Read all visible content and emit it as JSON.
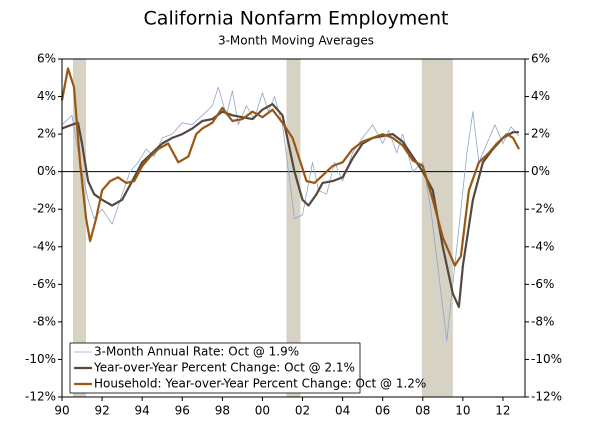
{
  "chart_data": {
    "type": "line",
    "title": "California Nonfarm Employment",
    "subtitle": "3-Month Moving Averages",
    "xlim": [
      1990,
      2013.1
    ],
    "xticks": [
      {
        "value": 1990,
        "label": "90"
      },
      {
        "value": 1992,
        "label": "92"
      },
      {
        "value": 1994,
        "label": "94"
      },
      {
        "value": 1996,
        "label": "96"
      },
      {
        "value": 1998,
        "label": "98"
      },
      {
        "value": 2000,
        "label": "00"
      },
      {
        "value": 2002,
        "label": "02"
      },
      {
        "value": 2004,
        "label": "04"
      },
      {
        "value": 2006,
        "label": "06"
      },
      {
        "value": 2008,
        "label": "08"
      },
      {
        "value": 2010,
        "label": "10"
      },
      {
        "value": 2012,
        "label": "12"
      }
    ],
    "ylim": [
      -12,
      6
    ],
    "yticks": [
      {
        "value": -12,
        "label": "-12%"
      },
      {
        "value": -10,
        "label": "-10%"
      },
      {
        "value": -8,
        "label": "-8%"
      },
      {
        "value": -6,
        "label": "-6%"
      },
      {
        "value": -4,
        "label": "-4%"
      },
      {
        "value": -2,
        "label": "-2%"
      },
      {
        "value": 0,
        "label": "0%"
      },
      {
        "value": 2,
        "label": "2%"
      },
      {
        "value": 4,
        "label": "4%"
      },
      {
        "value": 6,
        "label": "6%"
      }
    ],
    "y2lim": [
      -12,
      6
    ],
    "y2ticks": [
      {
        "value": -12,
        "label": "-12%"
      },
      {
        "value": -10,
        "label": "-10%"
      },
      {
        "value": -8,
        "label": "-8%"
      },
      {
        "value": -6,
        "label": "-6%"
      },
      {
        "value": -4,
        "label": "-4%"
      },
      {
        "value": -2,
        "label": "-2%"
      },
      {
        "value": 0,
        "label": "0%"
      },
      {
        "value": 2,
        "label": "2%"
      },
      {
        "value": 4,
        "label": "4%"
      },
      {
        "value": 6,
        "label": "6%"
      }
    ],
    "recessions": [
      [
        1990.55,
        1991.2
      ],
      [
        2001.2,
        2001.9
      ],
      [
        2007.95,
        2009.5
      ]
    ],
    "recession_color": "#d6d2c4",
    "legend": "lower left",
    "series": [
      {
        "name": "3-Month Annual Rate: Oct @ 1.9%",
        "color": "#8fa6c9",
        "width": 0.8,
        "x": [
          1990,
          1990.5,
          1990.9,
          1991.3,
          1991.6,
          1992,
          1992.5,
          1993,
          1993.4,
          1993.8,
          1994.2,
          1994.6,
          1995,
          1995.5,
          1996,
          1996.5,
          1997,
          1997.5,
          1997.8,
          1998.2,
          1998.5,
          1998.8,
          1999.2,
          1999.6,
          2000,
          2000.3,
          2000.6,
          2001,
          2001.3,
          2001.6,
          2002,
          2002.5,
          2002.8,
          2003.2,
          2003.6,
          2004,
          2004.5,
          2005,
          2005.5,
          2006,
          2006.3,
          2006.7,
          2007,
          2007.5,
          2008,
          2008.4,
          2008.8,
          2009.2,
          2009.5,
          2009.9,
          2010.2,
          2010.5,
          2010.8,
          2011.2,
          2011.6,
          2012,
          2012.4,
          2012.8
        ],
        "values": [
          2.5,
          3.0,
          0.5,
          -1.5,
          -2.5,
          -2.0,
          -2.8,
          -1.2,
          0,
          0.5,
          1.2,
          0.8,
          1.8,
          2.0,
          2.6,
          2.5,
          3.0,
          3.5,
          4.5,
          3.0,
          4.3,
          2.5,
          3.5,
          2.8,
          4.2,
          3.2,
          4.0,
          2.5,
          0,
          -2.5,
          -2.3,
          0.5,
          -1.0,
          -1.2,
          0.5,
          -0.5,
          1.0,
          1.8,
          2.5,
          1.5,
          2.2,
          1.0,
          2.0,
          0,
          0.5,
          -2.0,
          -5.5,
          -9.0,
          -6.0,
          -2.0,
          1.0,
          3.2,
          0.5,
          1.5,
          2.5,
          1.5,
          2.4,
          1.9
        ]
      },
      {
        "name": "Year-over-Year Percent Change: Oct @ 2.1%",
        "color": "#55483e",
        "width": 2.2,
        "x": [
          1990,
          1990.5,
          1990.8,
          1991,
          1991.3,
          1991.6,
          1992,
          1992.5,
          1993,
          1993.5,
          1994,
          1994.5,
          1995,
          1995.5,
          1996,
          1996.5,
          1997,
          1997.5,
          1998,
          1998.5,
          1999,
          1999.5,
          2000,
          2000.5,
          2001,
          2001.3,
          2001.6,
          2002,
          2002.3,
          2002.7,
          2003,
          2003.5,
          2004,
          2004.5,
          2005,
          2005.5,
          2006,
          2006.5,
          2007,
          2007.5,
          2008,
          2008.5,
          2009,
          2009.5,
          2009.8,
          2010,
          2010.5,
          2011,
          2011.5,
          2012,
          2012.5,
          2012.8
        ],
        "values": [
          2.3,
          2.5,
          2.6,
          1.5,
          -0.5,
          -1.2,
          -1.5,
          -1.8,
          -1.5,
          -0.5,
          0.5,
          1.0,
          1.5,
          1.8,
          2.0,
          2.3,
          2.7,
          2.8,
          3.2,
          3.0,
          2.9,
          2.8,
          3.3,
          3.6,
          3.0,
          1.5,
          0,
          -1.5,
          -1.8,
          -1.2,
          -0.6,
          -0.5,
          -0.3,
          0.7,
          1.5,
          1.8,
          1.9,
          2.0,
          1.6,
          0.8,
          0.0,
          -1.0,
          -4.0,
          -6.5,
          -7.2,
          -5.0,
          -1.5,
          0.5,
          1.2,
          1.8,
          2.1,
          2.1
        ]
      },
      {
        "name": "Household: Year-over-Year Percent Change: Oct @ 1.2%",
        "color": "#9a5714",
        "width": 2.2,
        "x": [
          1990,
          1990.3,
          1990.6,
          1990.9,
          1991.2,
          1991.4,
          1991.7,
          1992,
          1992.4,
          1992.8,
          1993.2,
          1993.6,
          1994,
          1994.4,
          1994.8,
          1995.3,
          1995.8,
          1996.3,
          1996.7,
          1997,
          1997.5,
          1998,
          1998.5,
          1999,
          1999.5,
          2000,
          2000.5,
          2001,
          2001.5,
          2001.9,
          2002.2,
          2002.6,
          2003,
          2003.5,
          2004,
          2004.5,
          2005,
          2005.5,
          2006,
          2006.5,
          2007,
          2007.5,
          2008,
          2008.5,
          2009,
          2009.6,
          2009.9,
          2010.3,
          2010.8,
          2011.3,
          2011.7,
          2012.2,
          2012.5,
          2012.8
        ],
        "values": [
          3.8,
          5.5,
          4.5,
          0.5,
          -2.5,
          -3.7,
          -2.5,
          -1.0,
          -0.5,
          -0.3,
          -0.6,
          -0.5,
          0.3,
          0.8,
          1.2,
          1.5,
          0.5,
          0.8,
          2.0,
          2.3,
          2.6,
          3.4,
          2.7,
          2.8,
          3.2,
          2.9,
          3.3,
          2.6,
          1.8,
          0.5,
          -0.5,
          -0.6,
          -0.2,
          0.3,
          0.5,
          1.2,
          1.6,
          1.8,
          2.0,
          1.8,
          1.4,
          0.6,
          0.3,
          -1.5,
          -3.5,
          -5.0,
          -4.5,
          -1.0,
          0.5,
          1.0,
          1.5,
          2.0,
          1.8,
          1.2
        ]
      }
    ]
  }
}
